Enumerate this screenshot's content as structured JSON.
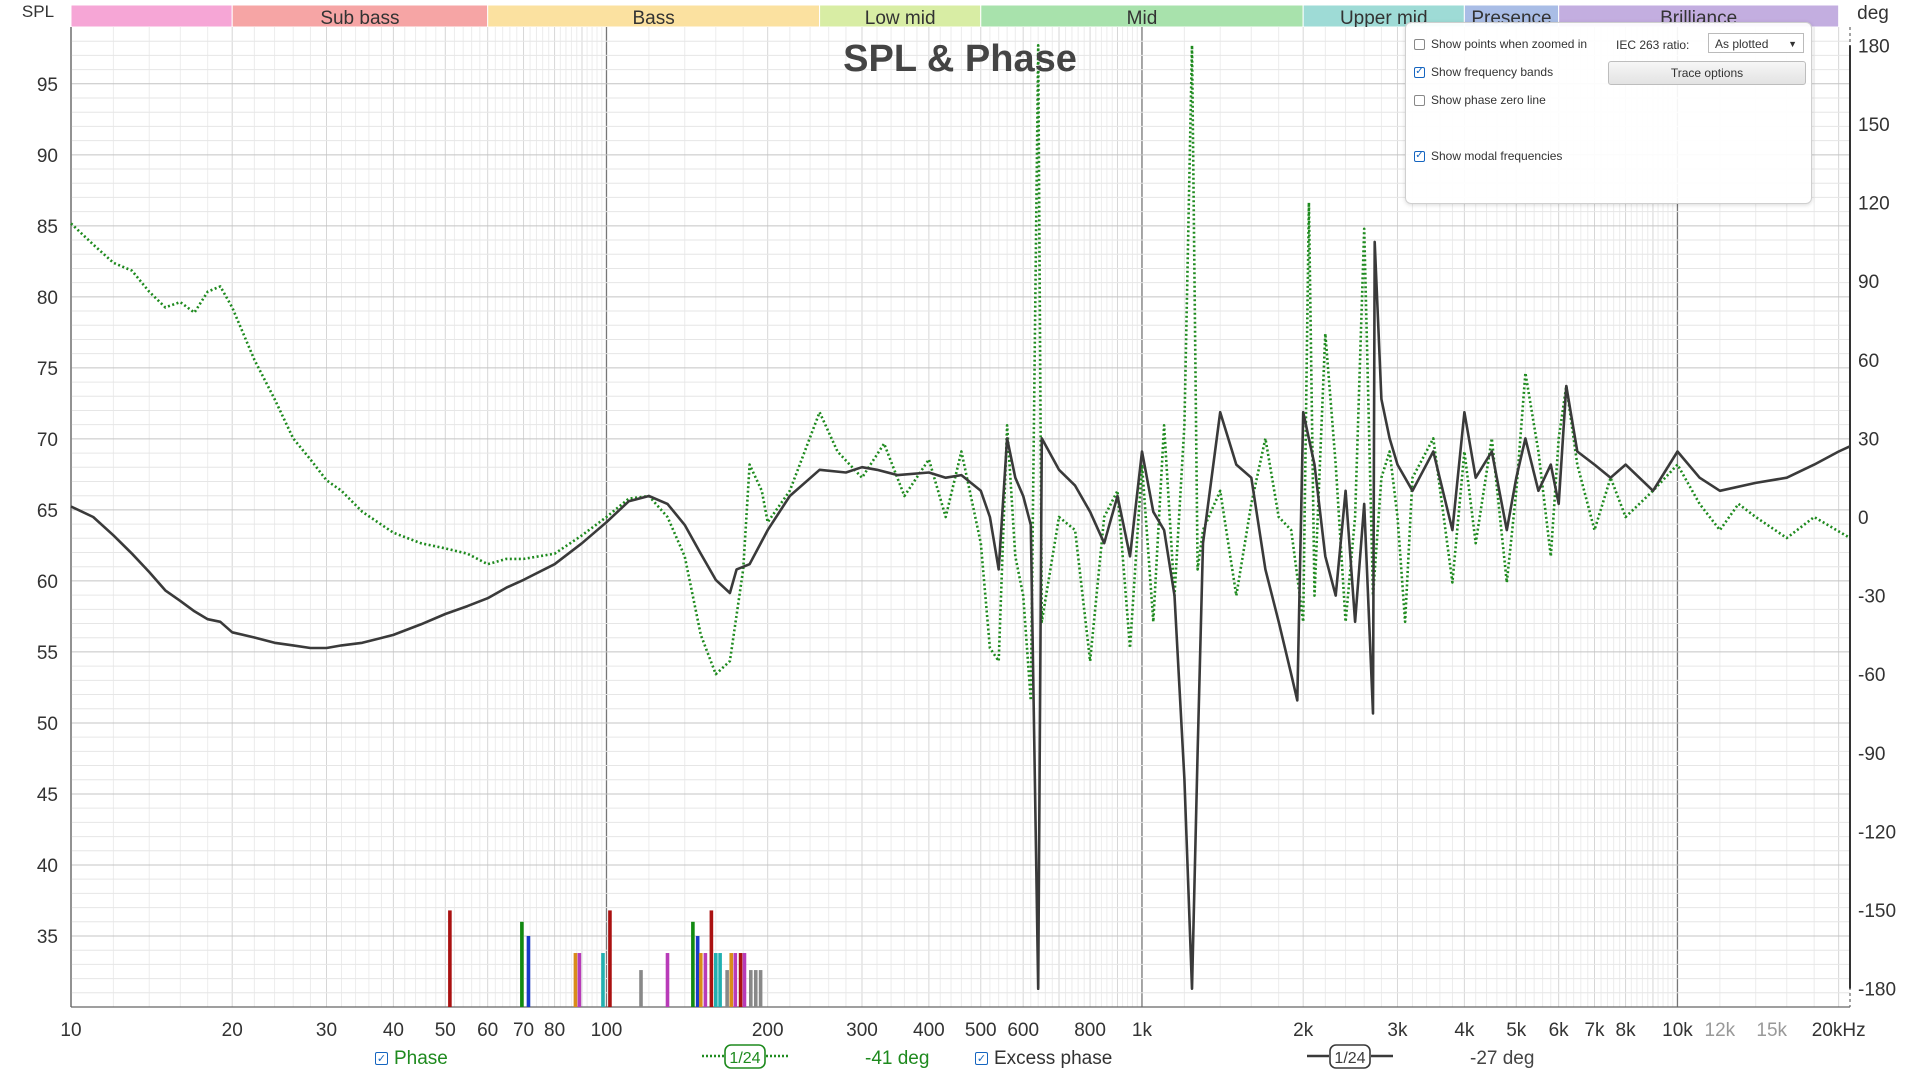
{
  "chart_data": {
    "type": "line",
    "title": "SPL & Phase",
    "ylabel_left": "SPL",
    "ylabel_right": "deg",
    "xunit": "kHz",
    "xscale": "log",
    "xlim": [
      10,
      21000
    ],
    "ylim": [
      30,
      99
    ],
    "y2lim": [
      -187,
      187
    ],
    "grid": true,
    "x_ticks": [
      {
        "v": 10,
        "t": "10"
      },
      {
        "v": 20,
        "t": "20"
      },
      {
        "v": 30,
        "t": "30"
      },
      {
        "v": 40,
        "t": "40"
      },
      {
        "v": 50,
        "t": "50"
      },
      {
        "v": 60,
        "t": "60"
      },
      {
        "v": 70,
        "t": "70"
      },
      {
        "v": 80,
        "t": "80"
      },
      {
        "v": 100,
        "t": "100"
      },
      {
        "v": 200,
        "t": "200"
      },
      {
        "v": 300,
        "t": "300"
      },
      {
        "v": 400,
        "t": "400"
      },
      {
        "v": 500,
        "t": "500"
      },
      {
        "v": 600,
        "t": "600"
      },
      {
        "v": 800,
        "t": "800"
      },
      {
        "v": 1000,
        "t": "1k"
      },
      {
        "v": 2000,
        "t": "2k"
      },
      {
        "v": 3000,
        "t": "3k"
      },
      {
        "v": 4000,
        "t": "4k"
      },
      {
        "v": 5000,
        "t": "5k"
      },
      {
        "v": 6000,
        "t": "6k"
      },
      {
        "v": 7000,
        "t": "7k"
      },
      {
        "v": 8000,
        "t": "8k"
      },
      {
        "v": 10000,
        "t": "10k"
      },
      {
        "v": 12000,
        "t": "12k",
        "grey": true
      },
      {
        "v": 15000,
        "t": "15k",
        "grey": true
      },
      {
        "v": 20000,
        "t": "20kHz"
      }
    ],
    "y_ticks": [
      35,
      40,
      45,
      50,
      55,
      60,
      65,
      70,
      75,
      80,
      85,
      90,
      95
    ],
    "y2_ticks": [
      180,
      150,
      120,
      90,
      60,
      30,
      0,
      -30,
      -60,
      -90,
      -120,
      -150,
      -180
    ],
    "bands": [
      {
        "name": "",
        "from": 10,
        "to": 20,
        "color": "#f6a6d6"
      },
      {
        "name": "Sub bass",
        "from": 20,
        "to": 60,
        "color": "#f6a5a5"
      },
      {
        "name": "Bass",
        "from": 60,
        "to": 250,
        "color": "#fbe1a0"
      },
      {
        "name": "Low mid",
        "from": 250,
        "to": 500,
        "color": "#d8eda4"
      },
      {
        "name": "Mid",
        "from": 500,
        "to": 2000,
        "color": "#a8e2ac"
      },
      {
        "name": "Upper mid",
        "from": 2000,
        "to": 4000,
        "color": "#9edbd6"
      },
      {
        "name": "Presence",
        "from": 4000,
        "to": 6000,
        "color": "#a9bde6"
      },
      {
        "name": "Brilliance",
        "from": 6000,
        "to": 20000,
        "color": "#c3aee0"
      }
    ],
    "series": [
      {
        "name": "Excess phase",
        "axis": "deg",
        "color": "#3a3a3a",
        "style": "solid",
        "points": [
          [
            10,
            4
          ],
          [
            11,
            0
          ],
          [
            12,
            -7
          ],
          [
            13,
            -14
          ],
          [
            14,
            -21
          ],
          [
            15,
            -28
          ],
          [
            16,
            -32
          ],
          [
            17,
            -36
          ],
          [
            18,
            -39
          ],
          [
            19,
            -40
          ],
          [
            20,
            -44
          ],
          [
            22,
            -46
          ],
          [
            24,
            -48
          ],
          [
            26,
            -49
          ],
          [
            28,
            -50
          ],
          [
            30,
            -50
          ],
          [
            32,
            -49
          ],
          [
            35,
            -48
          ],
          [
            40,
            -45
          ],
          [
            45,
            -41
          ],
          [
            50,
            -37
          ],
          [
            55,
            -34
          ],
          [
            60,
            -31
          ],
          [
            65,
            -27
          ],
          [
            70,
            -24
          ],
          [
            80,
            -18
          ],
          [
            90,
            -10
          ],
          [
            100,
            -2
          ],
          [
            110,
            6
          ],
          [
            120,
            8
          ],
          [
            130,
            5
          ],
          [
            140,
            -3
          ],
          [
            150,
            -14
          ],
          [
            160,
            -24
          ],
          [
            170,
            -29
          ],
          [
            175,
            -20
          ],
          [
            185,
            -18
          ],
          [
            200,
            -5
          ],
          [
            220,
            8
          ],
          [
            250,
            18
          ],
          [
            280,
            17
          ],
          [
            300,
            19
          ],
          [
            320,
            18
          ],
          [
            350,
            16
          ],
          [
            400,
            17
          ],
          [
            430,
            15
          ],
          [
            460,
            16
          ],
          [
            500,
            10
          ],
          [
            520,
            0
          ],
          [
            540,
            -20
          ],
          [
            560,
            30
          ],
          [
            580,
            15
          ],
          [
            600,
            8
          ],
          [
            620,
            -3
          ],
          [
            640,
            -180
          ],
          [
            650,
            30
          ],
          [
            700,
            18
          ],
          [
            750,
            12
          ],
          [
            800,
            2
          ],
          [
            850,
            -10
          ],
          [
            900,
            8
          ],
          [
            950,
            -15
          ],
          [
            1000,
            25
          ],
          [
            1050,
            2
          ],
          [
            1100,
            -5
          ],
          [
            1150,
            -30
          ],
          [
            1200,
            -100
          ],
          [
            1240,
            -180
          ],
          [
            1270,
            -90
          ],
          [
            1300,
            -10
          ],
          [
            1400,
            40
          ],
          [
            1500,
            20
          ],
          [
            1600,
            15
          ],
          [
            1700,
            -20
          ],
          [
            1800,
            -40
          ],
          [
            1900,
            -60
          ],
          [
            1950,
            -70
          ],
          [
            2000,
            40
          ],
          [
            2100,
            20
          ],
          [
            2200,
            -15
          ],
          [
            2300,
            -30
          ],
          [
            2400,
            10
          ],
          [
            2500,
            -40
          ],
          [
            2600,
            5
          ],
          [
            2700,
            -75
          ],
          [
            2720,
            105
          ],
          [
            2800,
            45
          ],
          [
            2900,
            30
          ],
          [
            3000,
            20
          ],
          [
            3200,
            10
          ],
          [
            3500,
            25
          ],
          [
            3800,
            -5
          ],
          [
            4000,
            40
          ],
          [
            4200,
            15
          ],
          [
            4500,
            25
          ],
          [
            4800,
            -5
          ],
          [
            5000,
            15
          ],
          [
            5200,
            30
          ],
          [
            5500,
            10
          ],
          [
            5800,
            20
          ],
          [
            6000,
            5
          ],
          [
            6200,
            50
          ],
          [
            6500,
            25
          ],
          [
            7000,
            20
          ],
          [
            7500,
            15
          ],
          [
            8000,
            20
          ],
          [
            9000,
            10
          ],
          [
            10000,
            25
          ],
          [
            11000,
            15
          ],
          [
            12000,
            10
          ],
          [
            14000,
            13
          ],
          [
            16000,
            15
          ],
          [
            18000,
            20
          ],
          [
            20000,
            25
          ],
          [
            21000,
            27
          ]
        ]
      },
      {
        "name": "Phase",
        "axis": "deg",
        "color": "#1e8a1e",
        "style": "dotted",
        "points": [
          [
            10,
            112
          ],
          [
            11,
            104
          ],
          [
            12,
            97
          ],
          [
            13,
            94
          ],
          [
            14,
            86
          ],
          [
            15,
            80
          ],
          [
            16,
            82
          ],
          [
            17,
            78
          ],
          [
            18,
            86
          ],
          [
            19,
            88
          ],
          [
            20,
            80
          ],
          [
            22,
            60
          ],
          [
            24,
            45
          ],
          [
            26,
            30
          ],
          [
            28,
            22
          ],
          [
            30,
            14
          ],
          [
            32,
            10
          ],
          [
            35,
            2
          ],
          [
            40,
            -6
          ],
          [
            45,
            -10
          ],
          [
            50,
            -12
          ],
          [
            55,
            -14
          ],
          [
            60,
            -18
          ],
          [
            65,
            -16
          ],
          [
            70,
            -16
          ],
          [
            80,
            -14
          ],
          [
            90,
            -7
          ],
          [
            100,
            0
          ],
          [
            110,
            7
          ],
          [
            120,
            8
          ],
          [
            130,
            0
          ],
          [
            140,
            -15
          ],
          [
            150,
            -45
          ],
          [
            160,
            -60
          ],
          [
            170,
            -55
          ],
          [
            180,
            -20
          ],
          [
            185,
            20
          ],
          [
            195,
            10
          ],
          [
            200,
            -2
          ],
          [
            220,
            10
          ],
          [
            250,
            40
          ],
          [
            270,
            25
          ],
          [
            300,
            15
          ],
          [
            330,
            28
          ],
          [
            360,
            8
          ],
          [
            400,
            22
          ],
          [
            430,
            0
          ],
          [
            460,
            25
          ],
          [
            500,
            -10
          ],
          [
            520,
            -50
          ],
          [
            540,
            -55
          ],
          [
            560,
            35
          ],
          [
            580,
            -15
          ],
          [
            600,
            -30
          ],
          [
            620,
            -70
          ],
          [
            640,
            180
          ],
          [
            650,
            -40
          ],
          [
            700,
            0
          ],
          [
            750,
            -5
          ],
          [
            800,
            -55
          ],
          [
            850,
            0
          ],
          [
            900,
            10
          ],
          [
            950,
            -50
          ],
          [
            1000,
            20
          ],
          [
            1050,
            -40
          ],
          [
            1100,
            35
          ],
          [
            1150,
            -30
          ],
          [
            1200,
            35
          ],
          [
            1240,
            180
          ],
          [
            1270,
            -20
          ],
          [
            1300,
            -5
          ],
          [
            1400,
            10
          ],
          [
            1500,
            -30
          ],
          [
            1600,
            5
          ],
          [
            1700,
            30
          ],
          [
            1800,
            0
          ],
          [
            1900,
            -5
          ],
          [
            2000,
            -40
          ],
          [
            2050,
            120
          ],
          [
            2100,
            -30
          ],
          [
            2200,
            70
          ],
          [
            2300,
            20
          ],
          [
            2400,
            -40
          ],
          [
            2500,
            0
          ],
          [
            2600,
            110
          ],
          [
            2700,
            -30
          ],
          [
            2800,
            15
          ],
          [
            2900,
            25
          ],
          [
            3000,
            0
          ],
          [
            3100,
            -40
          ],
          [
            3200,
            15
          ],
          [
            3500,
            30
          ],
          [
            3800,
            -25
          ],
          [
            4000,
            25
          ],
          [
            4200,
            -10
          ],
          [
            4500,
            30
          ],
          [
            4800,
            -25
          ],
          [
            5000,
            10
          ],
          [
            5200,
            55
          ],
          [
            5500,
            25
          ],
          [
            5800,
            -15
          ],
          [
            6000,
            30
          ],
          [
            6200,
            50
          ],
          [
            6500,
            20
          ],
          [
            7000,
            -5
          ],
          [
            7500,
            15
          ],
          [
            8000,
            0
          ],
          [
            9000,
            10
          ],
          [
            10000,
            20
          ],
          [
            11000,
            5
          ],
          [
            12000,
            -5
          ],
          [
            13000,
            5
          ],
          [
            14000,
            0
          ],
          [
            16000,
            -8
          ],
          [
            18000,
            0
          ],
          [
            21000,
            -8
          ]
        ]
      }
    ],
    "modal_bars": [
      {
        "f": 51,
        "h": 36.8,
        "c": "#aa1111"
      },
      {
        "f": 69.5,
        "h": 36.0,
        "c": "#118a11"
      },
      {
        "f": 71.5,
        "h": 35.0,
        "c": "#1a3ac8"
      },
      {
        "f": 87.5,
        "h": 33.8,
        "c": "#d98c1a"
      },
      {
        "f": 89.0,
        "h": 33.8,
        "c": "#b83bb8"
      },
      {
        "f": 98.5,
        "h": 33.8,
        "c": "#22b0b0"
      },
      {
        "f": 101.5,
        "h": 36.8,
        "c": "#aa1111"
      },
      {
        "f": 116,
        "h": 32.6,
        "c": "#888888"
      },
      {
        "f": 130,
        "h": 33.8,
        "c": "#b83bb8"
      },
      {
        "f": 145,
        "h": 36.0,
        "c": "#118a11"
      },
      {
        "f": 148,
        "h": 35.0,
        "c": "#1a3ac8"
      },
      {
        "f": 150,
        "h": 33.8,
        "c": "#d98c1a"
      },
      {
        "f": 153,
        "h": 33.8,
        "c": "#b83bb8"
      },
      {
        "f": 157,
        "h": 36.8,
        "c": "#aa1111"
      },
      {
        "f": 160,
        "h": 33.8,
        "c": "#22b0b0"
      },
      {
        "f": 163,
        "h": 33.8,
        "c": "#22b0b0"
      },
      {
        "f": 168,
        "h": 32.6,
        "c": "#888888"
      },
      {
        "f": 171,
        "h": 33.8,
        "c": "#d98c1a"
      },
      {
        "f": 174,
        "h": 33.8,
        "c": "#b83bb8"
      },
      {
        "f": 178,
        "h": 33.8,
        "c": "#aa1111"
      },
      {
        "f": 181,
        "h": 33.8,
        "c": "#b83bb8"
      },
      {
        "f": 186,
        "h": 32.6,
        "c": "#888888"
      },
      {
        "f": 190,
        "h": 32.6,
        "c": "#888888"
      },
      {
        "f": 194,
        "h": 32.6,
        "c": "#888888"
      }
    ]
  },
  "options": {
    "show_points_label": "Show points when zoomed in",
    "show_points_checked": false,
    "show_bands_label": "Show frequency bands",
    "show_bands_checked": true,
    "show_phase_zero_label": "Show phase zero line",
    "show_phase_zero_checked": false,
    "show_modal_label": "Show modal frequencies",
    "show_modal_checked": true,
    "iec_label": "IEC 263 ratio:",
    "iec_value": "As plotted",
    "trace_options_label": "Trace options"
  },
  "legend": {
    "phase_label": "Phase",
    "phase_smoothing": "1/24",
    "phase_value": "-41 deg",
    "excess_label": "Excess phase",
    "excess_smoothing": "1/24",
    "excess_value": "-27 deg"
  }
}
